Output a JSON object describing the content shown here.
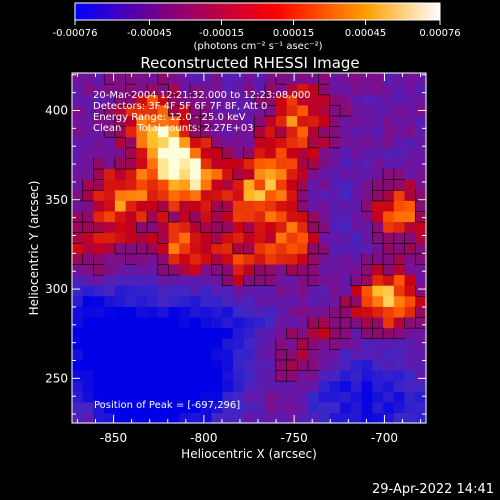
{
  "chart_data": {
    "type": "heatmap",
    "title": "Reconstructed RHESSI Image",
    "xlabel": "Heliocentric X (arcsec)",
    "ylabel": "Heliocentric Y (arcsec)",
    "xlim": [
      -873,
      -677
    ],
    "ylim": [
      225,
      421
    ],
    "xticks": [
      -850,
      -800,
      -750,
      -700
    ],
    "yticks": [
      250,
      300,
      350,
      400
    ],
    "colorbar": {
      "range": [
        -0.00076,
        0.00076
      ],
      "ticks": [
        "-0.00076",
        "-0.00045",
        "-0.00015",
        "0.00015",
        "0.00045",
        "0.00076"
      ],
      "unit_label": "(photons cm⁻² s⁻¹ asec⁻²)",
      "colors": [
        "#0000ff",
        "#800080",
        "#ff0000",
        "#ffa000",
        "#ffffff"
      ]
    },
    "annotations": {
      "time": "20-Mar-2004 12:21:32.000 to 12:23:08.000",
      "detectors": "Detectors: 3F 4F 5F 6F 7F 8F, Att 0",
      "energy": "Energy Range: 12.0 - 25.0 keV",
      "method": "Clean     Total counts: 2.27E+03",
      "peak": "Position of Peak = [-697,296]"
    },
    "peak": {
      "x": -697,
      "y": 296
    },
    "hot_spots": [
      {
        "x": -697,
        "y": 296,
        "intensity": 1.0
      },
      {
        "x": -818,
        "y": 378,
        "intensity": 0.95
      },
      {
        "x": -692,
        "y": 344,
        "intensity": 0.85
      },
      {
        "x": -845,
        "y": 352,
        "intensity": 0.8
      },
      {
        "x": -805,
        "y": 362,
        "intensity": 0.75
      },
      {
        "x": -770,
        "y": 352,
        "intensity": 0.7
      },
      {
        "x": -748,
        "y": 328,
        "intensity": 0.75
      },
      {
        "x": -812,
        "y": 322,
        "intensity": 0.75
      },
      {
        "x": -780,
        "y": 312,
        "intensity": 0.7
      },
      {
        "x": -745,
        "y": 400,
        "intensity": 0.72
      },
      {
        "x": -830,
        "y": 400,
        "intensity": 0.65
      },
      {
        "x": -755,
        "y": 370,
        "intensity": 0.6
      },
      {
        "x": -862,
        "y": 320,
        "intensity": 0.55
      },
      {
        "x": -735,
        "y": 272,
        "intensity": 0.5
      },
      {
        "x": -870,
        "y": 230,
        "intensity": 0.35
      },
      {
        "x": -750,
        "y": 252,
        "intensity": 0.3
      }
    ],
    "cold_spots": [
      {
        "x": -830,
        "y": 262,
        "intensity": -0.9
      },
      {
        "x": -862,
        "y": 282,
        "intensity": -0.8
      },
      {
        "x": -808,
        "y": 242,
        "intensity": -0.75
      },
      {
        "x": -790,
        "y": 285,
        "intensity": -0.65
      },
      {
        "x": -720,
        "y": 245,
        "intensity": -0.55
      },
      {
        "x": -690,
        "y": 230,
        "intensity": -0.4
      },
      {
        "x": -850,
        "y": 240,
        "intensity": -0.7
      },
      {
        "x": -718,
        "y": 340,
        "intensity": -0.3
      }
    ],
    "grid": false
  },
  "footer": {
    "timestamp": "29-Apr-2022 14:41"
  }
}
